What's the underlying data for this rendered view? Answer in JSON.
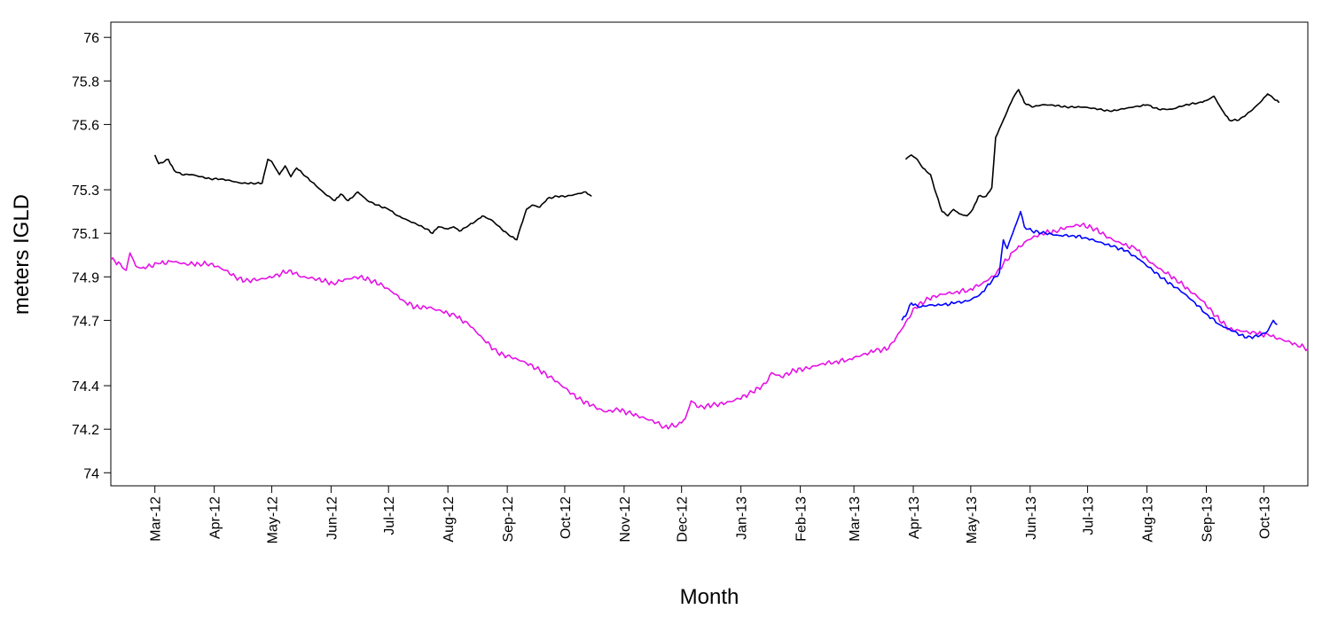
{
  "chart_data": {
    "type": "line",
    "title": "",
    "xlabel": "Month",
    "ylabel": "meters IGLD",
    "xlim": [
      "2012-02-07",
      "2013-10-24"
    ],
    "ylim": [
      73.94,
      76.07
    ],
    "y_ticks": [
      74,
      74.2,
      74.4,
      74.7,
      74.9,
      75.1,
      75.3,
      75.6,
      75.8,
      76
    ],
    "y_tick_labels": [
      "74",
      "74.2",
      "74.4",
      "74.7",
      "74.9",
      "75.1",
      "75.3",
      "75.6",
      "75.8",
      "76"
    ],
    "x_ticks": [
      "2012-03-01",
      "2012-04-01",
      "2012-05-01",
      "2012-06-01",
      "2012-07-01",
      "2012-08-01",
      "2012-09-01",
      "2012-10-01",
      "2012-11-01",
      "2012-12-01",
      "2013-01-01",
      "2013-02-01",
      "2013-03-01",
      "2013-04-01",
      "2013-05-01",
      "2013-06-01",
      "2013-07-01",
      "2013-08-01",
      "2013-09-01",
      "2013-10-01"
    ],
    "x_tick_labels": [
      "Mar-12",
      "Apr-12",
      "May-12",
      "Jun-12",
      "Jul-12",
      "Aug-12",
      "Sep-12",
      "Oct-12",
      "Nov-12",
      "Dec-12",
      "Jan-13",
      "Feb-13",
      "Mar-13",
      "Apr-13",
      "May-13",
      "Jun-13",
      "Jul-13",
      "Aug-13",
      "Sep-13",
      "Oct-13"
    ],
    "grid": false,
    "legend": "none",
    "series": [
      {
        "color": "#000000",
        "segments": [
          [
            [
              "2012-03-01",
              75.46
            ],
            [
              "2012-03-03",
              75.42
            ],
            [
              "2012-03-06",
              75.43
            ],
            [
              "2012-03-08",
              75.44
            ],
            [
              "2012-03-11",
              75.39
            ],
            [
              "2012-03-15",
              75.37
            ],
            [
              "2012-03-20",
              75.37
            ],
            [
              "2012-03-25",
              75.36
            ],
            [
              "2012-03-30",
              75.35
            ],
            [
              "2012-04-05",
              75.35
            ],
            [
              "2012-04-10",
              75.34
            ],
            [
              "2012-04-15",
              75.33
            ],
            [
              "2012-04-21",
              75.33
            ],
            [
              "2012-04-26",
              75.33
            ],
            [
              "2012-04-29",
              75.44
            ],
            [
              "2012-05-01",
              75.43
            ],
            [
              "2012-05-05",
              75.37
            ],
            [
              "2012-05-08",
              75.41
            ],
            [
              "2012-05-11",
              75.36
            ],
            [
              "2012-05-14",
              75.4
            ],
            [
              "2012-05-19",
              75.36
            ],
            [
              "2012-05-24",
              75.32
            ],
            [
              "2012-05-29",
              75.28
            ],
            [
              "2012-06-03",
              75.25
            ],
            [
              "2012-06-06",
              75.28
            ],
            [
              "2012-06-10",
              75.25
            ],
            [
              "2012-06-15",
              75.29
            ],
            [
              "2012-06-20",
              75.25
            ],
            [
              "2012-06-25",
              75.23
            ],
            [
              "2012-07-01",
              75.21
            ],
            [
              "2012-07-06",
              75.18
            ],
            [
              "2012-07-11",
              75.16
            ],
            [
              "2012-07-16",
              75.14
            ],
            [
              "2012-07-21",
              75.12
            ],
            [
              "2012-07-24",
              75.1
            ],
            [
              "2012-07-27",
              75.13
            ],
            [
              "2012-08-01",
              75.12
            ],
            [
              "2012-08-04",
              75.13
            ],
            [
              "2012-08-07",
              75.11
            ],
            [
              "2012-08-11",
              75.13
            ],
            [
              "2012-08-16",
              75.16
            ],
            [
              "2012-08-19",
              75.18
            ],
            [
              "2012-08-24",
              75.16
            ],
            [
              "2012-08-29",
              75.12
            ],
            [
              "2012-09-02",
              75.09
            ],
            [
              "2012-09-06",
              75.07
            ],
            [
              "2012-09-08",
              75.13
            ],
            [
              "2012-09-11",
              75.21
            ],
            [
              "2012-09-14",
              75.23
            ],
            [
              "2012-09-18",
              75.22
            ],
            [
              "2012-09-22",
              75.26
            ],
            [
              "2012-09-27",
              75.27
            ],
            [
              "2012-10-02",
              75.27
            ],
            [
              "2012-10-07",
              75.28
            ],
            [
              "2012-10-12",
              75.29
            ],
            [
              "2012-10-15",
              75.27
            ]
          ],
          [
            [
              "2013-03-28",
              75.44
            ],
            [
              "2013-03-31",
              75.46
            ],
            [
              "2013-04-03",
              75.44
            ],
            [
              "2013-04-06",
              75.4
            ],
            [
              "2013-04-10",
              75.37
            ],
            [
              "2013-04-13",
              75.28
            ],
            [
              "2013-04-16",
              75.2
            ],
            [
              "2013-04-19",
              75.18
            ],
            [
              "2013-04-22",
              75.21
            ],
            [
              "2013-04-25",
              75.19
            ],
            [
              "2013-04-29",
              75.18
            ],
            [
              "2013-05-02",
              75.21
            ],
            [
              "2013-05-05",
              75.27
            ],
            [
              "2013-05-09",
              75.27
            ],
            [
              "2013-05-12",
              75.31
            ],
            [
              "2013-05-14",
              75.54
            ],
            [
              "2013-05-17",
              75.6
            ],
            [
              "2013-05-20",
              75.66
            ],
            [
              "2013-05-23",
              75.72
            ],
            [
              "2013-05-26",
              75.76
            ],
            [
              "2013-05-29",
              75.7
            ],
            [
              "2013-06-02",
              75.68
            ],
            [
              "2013-06-07",
              75.69
            ],
            [
              "2013-06-12",
              75.69
            ],
            [
              "2013-06-20",
              75.68
            ],
            [
              "2013-06-29",
              75.68
            ],
            [
              "2013-07-07",
              75.67
            ],
            [
              "2013-07-13",
              75.66
            ],
            [
              "2013-07-18",
              75.67
            ],
            [
              "2013-07-25",
              75.68
            ],
            [
              "2013-08-01",
              75.69
            ],
            [
              "2013-08-07",
              75.67
            ],
            [
              "2013-08-14",
              75.67
            ],
            [
              "2013-08-21",
              75.69
            ],
            [
              "2013-08-28",
              75.7
            ],
            [
              "2013-09-01",
              75.71
            ],
            [
              "2013-09-05",
              75.73
            ],
            [
              "2013-09-09",
              75.67
            ],
            [
              "2013-09-13",
              75.62
            ],
            [
              "2013-09-18",
              75.62
            ],
            [
              "2013-09-24",
              75.66
            ],
            [
              "2013-09-29",
              75.7
            ],
            [
              "2013-10-03",
              75.74
            ],
            [
              "2013-10-06",
              75.72
            ],
            [
              "2013-10-09",
              75.7
            ]
          ]
        ]
      },
      {
        "color": "#e512e5",
        "segments": [
          [
            [
              "2012-02-07",
              74.98
            ],
            [
              "2012-02-12",
              74.96
            ],
            [
              "2012-02-15",
              74.93
            ],
            [
              "2012-02-17",
              75.01
            ],
            [
              "2012-02-20",
              74.95
            ],
            [
              "2012-02-23",
              74.94
            ],
            [
              "2012-03-03",
              74.96
            ],
            [
              "2012-03-10",
              74.97
            ],
            [
              "2012-03-17",
              74.96
            ],
            [
              "2012-03-24",
              74.96
            ],
            [
              "2012-03-30",
              74.96
            ],
            [
              "2012-04-07",
              74.93
            ],
            [
              "2012-04-12",
              74.9
            ],
            [
              "2012-04-17",
              74.88
            ],
            [
              "2012-04-25",
              74.89
            ],
            [
              "2012-05-02",
              74.9
            ],
            [
              "2012-05-10",
              74.93
            ],
            [
              "2012-05-17",
              74.9
            ],
            [
              "2012-05-25",
              74.89
            ],
            [
              "2012-06-02",
              74.87
            ],
            [
              "2012-06-09",
              74.89
            ],
            [
              "2012-06-16",
              74.9
            ],
            [
              "2012-06-23",
              74.88
            ],
            [
              "2012-06-28",
              74.86
            ],
            [
              "2012-07-03",
              74.83
            ],
            [
              "2012-07-09",
              74.79
            ],
            [
              "2012-07-15",
              74.76
            ],
            [
              "2012-07-22",
              74.76
            ],
            [
              "2012-07-29",
              74.74
            ],
            [
              "2012-08-05",
              74.72
            ],
            [
              "2012-08-12",
              74.68
            ],
            [
              "2012-08-19",
              74.62
            ],
            [
              "2012-08-27",
              74.55
            ],
            [
              "2012-09-03",
              74.53
            ],
            [
              "2012-09-10",
              74.51
            ],
            [
              "2012-09-18",
              74.47
            ],
            [
              "2012-09-25",
              74.43
            ],
            [
              "2012-10-01",
              74.39
            ],
            [
              "2012-10-08",
              74.34
            ],
            [
              "2012-10-15",
              74.31
            ],
            [
              "2012-10-22",
              74.28
            ],
            [
              "2012-10-29",
              74.29
            ],
            [
              "2012-11-05",
              74.27
            ],
            [
              "2012-11-12",
              74.25
            ],
            [
              "2012-11-18",
              74.23
            ],
            [
              "2012-11-22",
              74.21
            ],
            [
              "2012-11-29",
              74.22
            ],
            [
              "2012-12-03",
              74.25
            ],
            [
              "2012-12-06",
              74.33
            ],
            [
              "2012-12-10",
              74.3
            ],
            [
              "2012-12-17",
              74.31
            ],
            [
              "2012-12-24",
              74.32
            ],
            [
              "2012-12-31",
              74.34
            ],
            [
              "2013-01-07",
              74.37
            ],
            [
              "2013-01-14",
              74.41
            ],
            [
              "2013-01-17",
              74.46
            ],
            [
              "2013-01-22",
              74.44
            ],
            [
              "2013-01-29",
              74.47
            ],
            [
              "2013-02-05",
              74.48
            ],
            [
              "2013-02-12",
              74.5
            ],
            [
              "2013-02-19",
              74.51
            ],
            [
              "2013-02-26",
              74.52
            ],
            [
              "2013-03-05",
              74.54
            ],
            [
              "2013-03-12",
              74.56
            ],
            [
              "2013-03-19",
              74.57
            ],
            [
              "2013-03-26",
              74.66
            ],
            [
              "2013-04-02",
              74.76
            ],
            [
              "2013-04-09",
              74.8
            ],
            [
              "2013-04-16",
              74.82
            ],
            [
              "2013-04-23",
              74.83
            ],
            [
              "2013-04-30",
              74.84
            ],
            [
              "2013-05-07",
              74.87
            ],
            [
              "2013-05-14",
              74.91
            ],
            [
              "2013-05-18",
              74.96
            ],
            [
              "2013-05-24",
              75.02
            ],
            [
              "2013-05-31",
              75.07
            ],
            [
              "2013-06-07",
              75.1
            ],
            [
              "2013-06-14",
              75.11
            ],
            [
              "2013-06-21",
              75.13
            ],
            [
              "2013-06-28",
              75.14
            ],
            [
              "2013-07-05",
              75.12
            ],
            [
              "2013-07-12",
              75.08
            ],
            [
              "2013-07-19",
              75.05
            ],
            [
              "2013-07-26",
              75.03
            ],
            [
              "2013-08-02",
              74.97
            ],
            [
              "2013-08-09",
              74.93
            ],
            [
              "2013-08-16",
              74.89
            ],
            [
              "2013-08-23",
              74.84
            ],
            [
              "2013-08-30",
              74.79
            ],
            [
              "2013-09-06",
              74.72
            ],
            [
              "2013-09-13",
              74.66
            ],
            [
              "2013-09-20",
              74.65
            ],
            [
              "2013-09-27",
              74.64
            ],
            [
              "2013-10-04",
              74.63
            ],
            [
              "2013-10-11",
              74.61
            ],
            [
              "2013-10-18",
              74.59
            ],
            [
              "2013-10-24",
              74.57
            ]
          ]
        ]
      },
      {
        "color": "#0000ff",
        "segments": [
          [
            [
              "2013-03-26",
              74.7
            ],
            [
              "2013-03-29",
              74.74
            ],
            [
              "2013-03-31",
              74.78
            ],
            [
              "2013-04-04",
              74.76
            ],
            [
              "2013-04-09",
              74.77
            ],
            [
              "2013-04-16",
              74.77
            ],
            [
              "2013-04-23",
              74.78
            ],
            [
              "2013-04-30",
              74.79
            ],
            [
              "2013-05-06",
              74.82
            ],
            [
              "2013-05-12",
              74.88
            ],
            [
              "2013-05-16",
              74.92
            ],
            [
              "2013-05-18",
              75.07
            ],
            [
              "2013-05-20",
              75.03
            ],
            [
              "2013-05-22",
              75.08
            ],
            [
              "2013-05-25",
              75.15
            ],
            [
              "2013-05-27",
              75.2
            ],
            [
              "2013-05-29",
              75.13
            ],
            [
              "2013-06-02",
              75.11
            ],
            [
              "2013-06-09",
              75.1
            ],
            [
              "2013-06-16",
              75.09
            ],
            [
              "2013-06-23",
              75.09
            ],
            [
              "2013-06-30",
              75.08
            ],
            [
              "2013-07-07",
              75.06
            ],
            [
              "2013-07-14",
              75.04
            ],
            [
              "2013-07-21",
              75.02
            ],
            [
              "2013-07-28",
              74.98
            ],
            [
              "2013-08-04",
              74.93
            ],
            [
              "2013-08-11",
              74.88
            ],
            [
              "2013-08-18",
              74.84
            ],
            [
              "2013-08-25",
              74.79
            ],
            [
              "2013-09-01",
              74.73
            ],
            [
              "2013-09-08",
              74.68
            ],
            [
              "2013-09-15",
              74.65
            ],
            [
              "2013-09-22",
              74.62
            ],
            [
              "2013-09-29",
              74.63
            ],
            [
              "2013-10-03",
              74.65
            ],
            [
              "2013-10-06",
              74.7
            ],
            [
              "2013-10-08",
              74.68
            ]
          ]
        ]
      }
    ]
  }
}
